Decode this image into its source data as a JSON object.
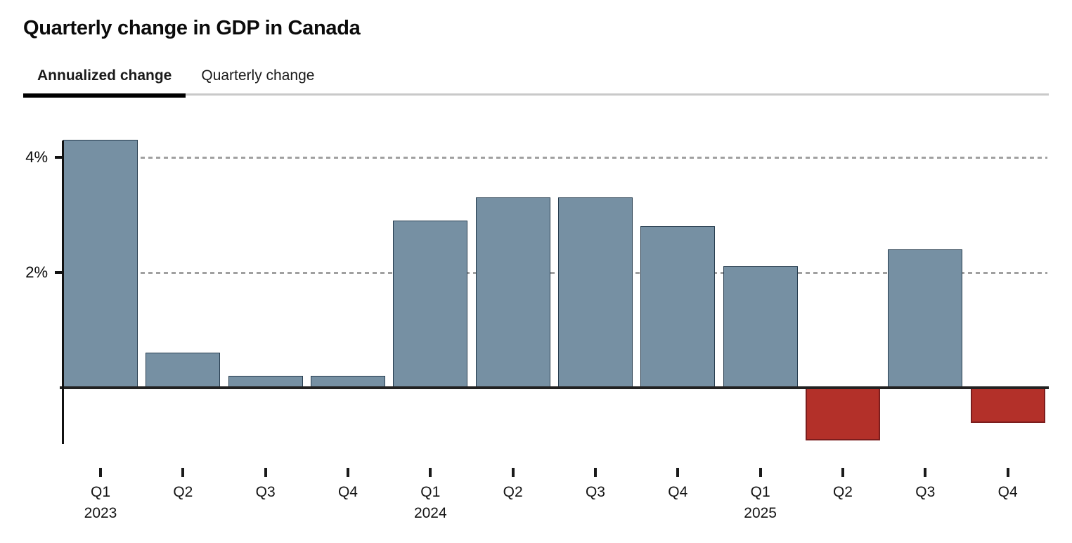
{
  "header": {
    "title": "Quarterly change in GDP in Canada"
  },
  "tabs": [
    {
      "label": "Annualized change",
      "active": true
    },
    {
      "label": "Quarterly change",
      "active": false
    }
  ],
  "chart_data": {
    "type": "bar",
    "title": "Quarterly change in GDP in Canada",
    "subtitle_tab": "Annualized change",
    "unit": "%",
    "categories": [
      "Q1 2023",
      "Q2 2023",
      "Q3 2023",
      "Q4 2023",
      "Q1 2024",
      "Q2 2024",
      "Q3 2024",
      "Q4 2024",
      "Q1 2025",
      "Q2 2025",
      "Q3 2025",
      "Q4 2025"
    ],
    "tick_labels": [
      "Q1",
      "Q2",
      "Q3",
      "Q4",
      "Q1",
      "Q2",
      "Q3",
      "Q4",
      "Q1",
      "Q2",
      "Q3",
      "Q4"
    ],
    "year_labels": {
      "0": "2023",
      "4": "2024",
      "8": "2025"
    },
    "values": [
      4.3,
      0.6,
      0.2,
      0.2,
      2.9,
      3.3,
      3.3,
      2.8,
      2.1,
      -0.9,
      2.4,
      -0.6
    ],
    "y_ticks": [
      {
        "label": "4%",
        "value": 4
      },
      {
        "label": "2%",
        "value": 2
      }
    ],
    "ylim": [
      -1.1,
      4.4
    ],
    "grid": "horizontal-dashed",
    "legend": "none",
    "positive_color": "#7690a3",
    "negative_color": "#b33029"
  }
}
